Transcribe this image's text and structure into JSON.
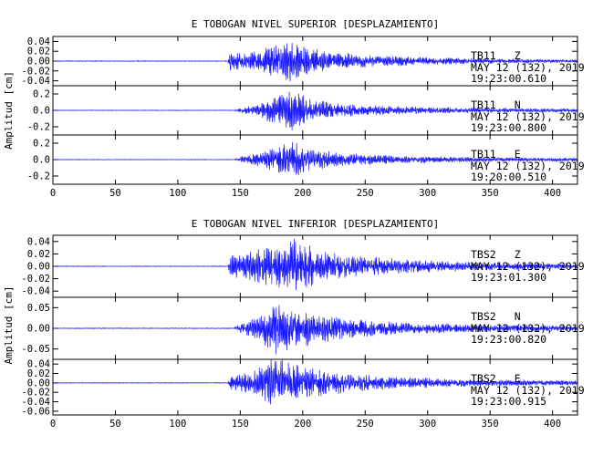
{
  "chart_data": [
    {
      "type": "line",
      "title": "E TOBOGAN NIVEL SUPERIOR [DESPLAZAMIENTO]",
      "xlabel": "",
      "ylabel": "Amplitud [cm]",
      "xlim": [
        0,
        420
      ],
      "x_ticks": [
        "0",
        "50",
        "100",
        "150",
        "200",
        "250",
        "300",
        "350",
        "400"
      ],
      "line_color": "#1a1aff",
      "panels": [
        {
          "station": "TB11",
          "component": "Z",
          "date": "MAY 12 (132), 2019",
          "time": "19:23:00.610",
          "ylim": [
            -0.05,
            0.05
          ],
          "y_ticks": [
            "0.04",
            "0.02",
            "0.00",
            "-0.02",
            "-0.04"
          ],
          "envelope": [
            [
              0,
              0.0008
            ],
            [
              140,
              0.0008
            ],
            [
              142,
              0.02
            ],
            [
              150,
              0.022
            ],
            [
              160,
              0.018
            ],
            [
              175,
              0.035
            ],
            [
              190,
              0.045
            ],
            [
              200,
              0.032
            ],
            [
              220,
              0.02
            ],
            [
              260,
              0.012
            ],
            [
              300,
              0.008
            ],
            [
              350,
              0.005
            ],
            [
              420,
              0.003
            ]
          ]
        },
        {
          "station": "TB11",
          "component": "N",
          "date": "MAY 12 (132), 2019",
          "time": "19:23:00.800",
          "ylim": [
            -0.3,
            0.3
          ],
          "y_ticks": [
            "0.2",
            "0.0",
            "-0.2"
          ],
          "envelope": [
            [
              0,
              0.004
            ],
            [
              145,
              0.004
            ],
            [
              150,
              0.03
            ],
            [
              165,
              0.08
            ],
            [
              180,
              0.2
            ],
            [
              195,
              0.26
            ],
            [
              205,
              0.15
            ],
            [
              230,
              0.08
            ],
            [
              280,
              0.05
            ],
            [
              340,
              0.03
            ],
            [
              420,
              0.02
            ]
          ]
        },
        {
          "station": "TB11",
          "component": "E",
          "date": "MAY 12 (132), 2019",
          "time": "19:20:00.510",
          "ylim": [
            -0.3,
            0.3
          ],
          "y_ticks": [
            "0.2",
            "0.0",
            "-0.2"
          ],
          "envelope": [
            [
              0,
              0.004
            ],
            [
              145,
              0.004
            ],
            [
              150,
              0.04
            ],
            [
              165,
              0.09
            ],
            [
              180,
              0.16
            ],
            [
              193,
              0.25
            ],
            [
              205,
              0.15
            ],
            [
              230,
              0.08
            ],
            [
              280,
              0.05
            ],
            [
              340,
              0.03
            ],
            [
              420,
              0.02
            ]
          ]
        }
      ]
    },
    {
      "type": "line",
      "title": "E TOBOGAN NIVEL INFERIOR [DESPLAZAMIENTO]",
      "xlabel": "",
      "ylabel": "Amplitud [cm]",
      "xlim": [
        0,
        420
      ],
      "x_ticks": [
        "0",
        "50",
        "100",
        "150",
        "200",
        "250",
        "300",
        "350",
        "400"
      ],
      "line_color": "#1a1aff",
      "panels": [
        {
          "station": "TBS2",
          "component": "Z",
          "date": "MAY 12 (132), 2019",
          "time": "19:23:01.300",
          "ylim": [
            -0.05,
            0.05
          ],
          "y_ticks": [
            "0.04",
            "0.02",
            "0.00",
            "-0.02",
            "-0.04"
          ],
          "envelope": [
            [
              0,
              0.0006
            ],
            [
              140,
              0.0006
            ],
            [
              142,
              0.018
            ],
            [
              155,
              0.022
            ],
            [
              170,
              0.032
            ],
            [
              185,
              0.038
            ],
            [
              195,
              0.05
            ],
            [
              210,
              0.028
            ],
            [
              240,
              0.018
            ],
            [
              280,
              0.012
            ],
            [
              340,
              0.007
            ],
            [
              420,
              0.004
            ]
          ]
        },
        {
          "station": "TBS2",
          "component": "N",
          "date": "MAY 12 (132), 2019",
          "time": "19:23:00.820",
          "ylim": [
            -0.075,
            0.075
          ],
          "y_ticks": [
            "0.05",
            "0.00",
            "-0.05"
          ],
          "envelope": [
            [
              0,
              0.001
            ],
            [
              145,
              0.001
            ],
            [
              150,
              0.012
            ],
            [
              165,
              0.03
            ],
            [
              178,
              0.07
            ],
            [
              190,
              0.05
            ],
            [
              210,
              0.04
            ],
            [
              240,
              0.025
            ],
            [
              280,
              0.015
            ],
            [
              340,
              0.01
            ],
            [
              420,
              0.006
            ]
          ]
        },
        {
          "station": "TBS2",
          "component": "E",
          "date": "MAY 12 (132), 2019",
          "time": "19:23:00.915",
          "ylim": [
            -0.068,
            0.05
          ],
          "y_ticks": [
            "0.04",
            "0.02",
            "0.00",
            "-0.02",
            "-0.04",
            "-0.06"
          ],
          "envelope": [
            [
              0,
              0.0008
            ],
            [
              140,
              0.0008
            ],
            [
              142,
              0.015
            ],
            [
              160,
              0.025
            ],
            [
              172,
              0.045
            ],
            [
              178,
              0.065
            ],
            [
              190,
              0.045
            ],
            [
              210,
              0.03
            ],
            [
              240,
              0.02
            ],
            [
              280,
              0.013
            ],
            [
              340,
              0.008
            ],
            [
              420,
              0.005
            ]
          ]
        }
      ]
    }
  ]
}
